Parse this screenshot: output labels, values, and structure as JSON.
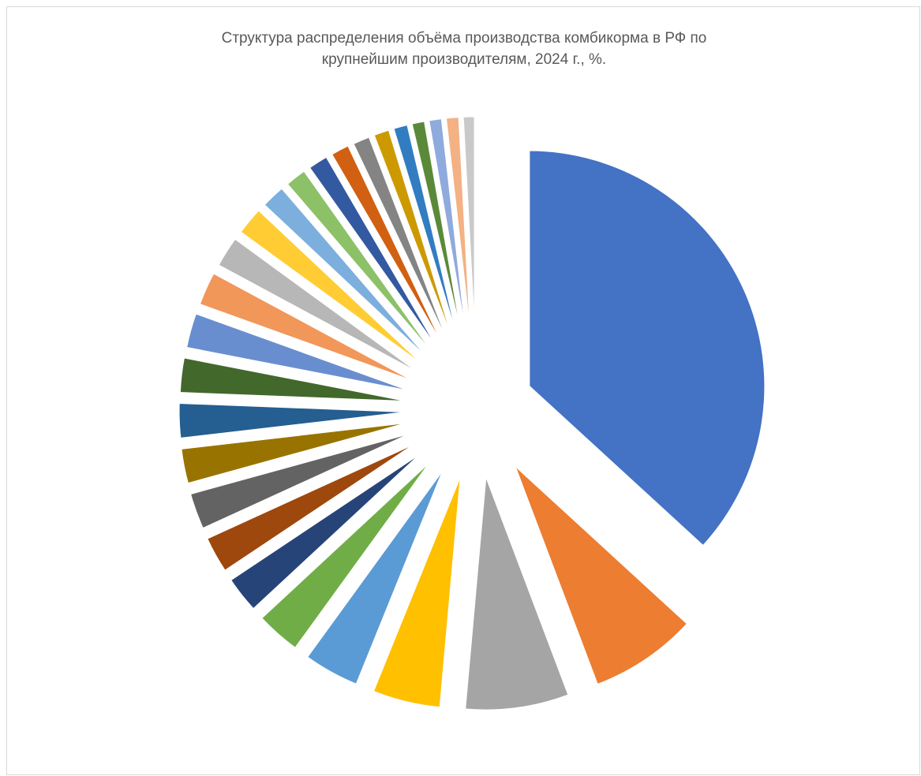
{
  "chart_data": {
    "type": "pie",
    "title_lines": [
      "Структура распределения объёма производства комбикорма в РФ по",
      "крупнейшим производителям, 2024 г., %."
    ],
    "legend": "none",
    "exploded": true,
    "start_angle_deg": 0,
    "values": [
      39.1,
      7.9,
      7.6,
      5.0,
      4.1,
      3.3,
      2.7,
      2.7,
      2.7,
      2.6,
      2.6,
      2.6,
      2.6,
      2.5,
      2.3,
      2.1,
      1.8,
      1.6,
      1.5,
      1.4,
      1.3,
      1.2,
      1.1,
      1.0,
      1.0,
      1.0,
      0.9
    ],
    "colors": [
      "#4472C4",
      "#ED7D31",
      "#A5A5A5",
      "#FFC000",
      "#5B9BD5",
      "#70AD47",
      "#264478",
      "#9E480E",
      "#636363",
      "#997300",
      "#255E91",
      "#43682B",
      "#698ED0",
      "#F1975A",
      "#B7B7B7",
      "#FFCD33",
      "#7CAFDD",
      "#8CC168",
      "#335AA1",
      "#D26012",
      "#848484",
      "#CC9A00",
      "#327DC2",
      "#5A8A39",
      "#8FAADC",
      "#F4B183",
      "#C9C9C9"
    ]
  }
}
